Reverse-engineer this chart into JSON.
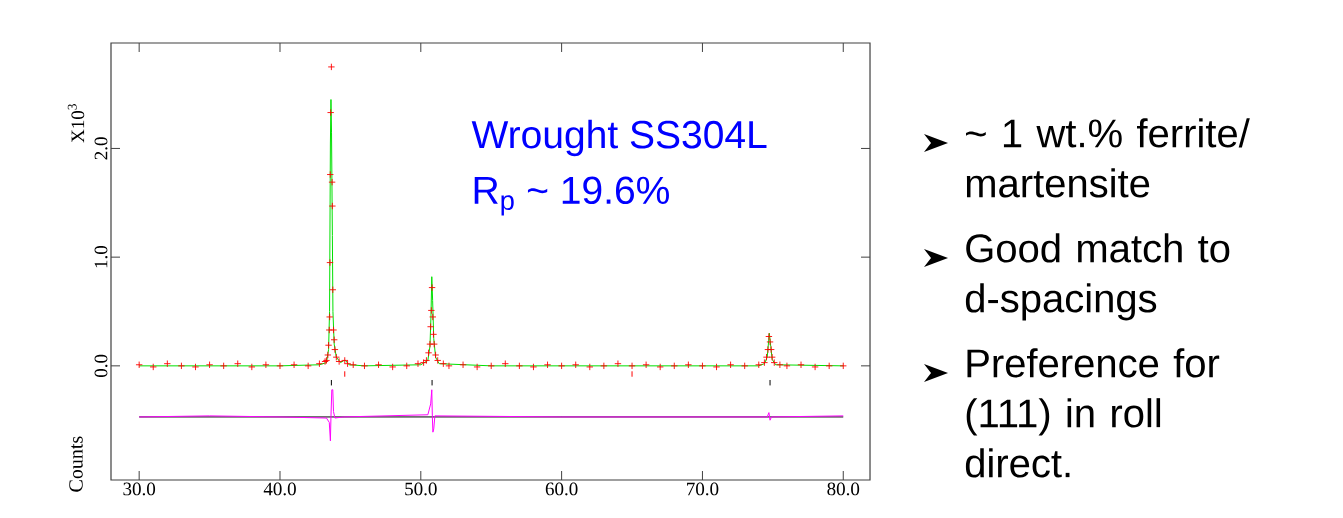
{
  "chart_data": {
    "type": "line",
    "ylabel": "Counts",
    "xlim": [
      28.0,
      81.9
    ],
    "ylim": [
      -1.05,
      2.97
    ],
    "xticks": [
      {
        "value": 30,
        "label": "30.0"
      },
      {
        "value": 40,
        "label": "40.0"
      },
      {
        "value": 50,
        "label": "50.0"
      },
      {
        "value": 60,
        "label": "60.0"
      },
      {
        "value": 70,
        "label": "70.0"
      },
      {
        "value": 80,
        "label": "80.0"
      }
    ],
    "yticks": [
      {
        "value": 0,
        "label": "0.0"
      },
      {
        "value": 1,
        "label": "1.0"
      },
      {
        "value": 2,
        "label": "2.0"
      }
    ],
    "annotations": [
      "X10$^{3}$",
      "Wrought SS304L",
      "R$_{p}$ ~  19.6%",
      "~ 1 wt.% ferrite/ martensite",
      "Good match to d-spacings",
      "Preference for (111) in roll direct."
    ],
    "series": [
      {
        "type": "scatter",
        "marker": "cross",
        "color": "#ff0000",
        "x": [
          30,
          31,
          32,
          33,
          34,
          35,
          36,
          37,
          38,
          39,
          40,
          41,
          42,
          42.8,
          43.2,
          43.3,
          43.4,
          43.45,
          43.5,
          43.53,
          43.55,
          43.57,
          43.6,
          43.65,
          43.7,
          43.72,
          43.75,
          43.8,
          43.85,
          43.9,
          44.0,
          44.2,
          44.6,
          44.8,
          45.2,
          46,
          47,
          48,
          49,
          49.8,
          50.2,
          50.4,
          50.55,
          50.65,
          50.7,
          50.75,
          50.8,
          50.85,
          50.9,
          50.95,
          51.05,
          51.2,
          51.6,
          52,
          53,
          54,
          55,
          56,
          57,
          58,
          59,
          60,
          61,
          62,
          63,
          64,
          65,
          66,
          67,
          68,
          69,
          70,
          71,
          72,
          73,
          74,
          74.4,
          74.55,
          74.65,
          74.72,
          74.8,
          74.88,
          74.95,
          75.1,
          75.5,
          76,
          77,
          78,
          79,
          80
        ],
        "values": [
          0.01,
          -0.01,
          0.02,
          0.0,
          -0.01,
          0.01,
          0.0,
          0.02,
          -0.01,
          0.01,
          0.0,
          0.01,
          0.0,
          0.02,
          0.04,
          0.05,
          0.1,
          0.19,
          0.33,
          0.45,
          0.95,
          1.76,
          2.33,
          2.75,
          1.69,
          1.47,
          0.7,
          0.33,
          0.24,
          0.15,
          0.08,
          0.04,
          0.05,
          0.02,
          0.01,
          0.0,
          0.01,
          -0.01,
          0.0,
          0.02,
          0.03,
          0.05,
          0.12,
          0.2,
          0.36,
          0.51,
          0.72,
          0.45,
          0.29,
          0.2,
          0.1,
          0.05,
          0.02,
          0.0,
          0.01,
          -0.01,
          0.0,
          0.02,
          0.0,
          -0.01,
          0.01,
          0.0,
          0.01,
          -0.01,
          0.0,
          0.02,
          0.0,
          0.01,
          -0.01,
          0.0,
          0.01,
          0.0,
          -0.01,
          0.01,
          0.0,
          0.01,
          0.03,
          0.08,
          0.15,
          0.27,
          0.22,
          0.15,
          0.08,
          0.03,
          0.01,
          0.0,
          0.01,
          -0.01,
          0.0,
          0.0
        ]
      },
      {
        "type": "line",
        "color": "#00e000",
        "x": [
          30,
          40,
          42.8,
          43.3,
          43.45,
          43.52,
          43.58,
          43.62,
          43.66,
          43.72,
          43.76,
          43.85,
          44.0,
          44.3,
          44.55,
          44.65,
          44.9,
          46,
          50,
          50.5,
          50.65,
          50.72,
          50.78,
          50.84,
          50.92,
          51.05,
          51.3,
          55,
          74,
          74.4,
          74.6,
          74.75,
          74.85,
          74.95,
          75.2,
          80
        ],
        "values": [
          0.0,
          0.0,
          0.01,
          0.03,
          0.15,
          0.5,
          2.05,
          2.45,
          2.15,
          1.2,
          0.5,
          0.2,
          0.08,
          0.03,
          0.05,
          0.05,
          0.01,
          0.0,
          0.01,
          0.05,
          0.18,
          0.45,
          0.82,
          0.6,
          0.25,
          0.08,
          0.02,
          0.0,
          0.0,
          0.02,
          0.08,
          0.3,
          0.18,
          0.06,
          0.01,
          0.0
        ]
      },
      {
        "color": "#000000",
        "x": [
          30,
          80
        ],
        "values": [
          -0.47,
          -0.47
        ]
      },
      {
        "color": "#ff00ff",
        "x": [
          30,
          35,
          40,
          43.3,
          43.5,
          43.58,
          43.62,
          43.68,
          43.75,
          43.8,
          43.9,
          44.5,
          50.5,
          50.7,
          50.78,
          50.82,
          50.86,
          50.92,
          51.0,
          60,
          74.6,
          74.72,
          74.8,
          74.9,
          80
        ],
        "values": [
          -0.47,
          -0.46,
          -0.47,
          -0.48,
          -0.52,
          -0.69,
          -0.47,
          -0.22,
          -0.22,
          -0.42,
          -0.48,
          -0.47,
          -0.45,
          -0.35,
          -0.22,
          -0.47,
          -0.61,
          -0.58,
          -0.46,
          -0.47,
          -0.47,
          -0.43,
          -0.5,
          -0.47,
          -0.46
        ]
      },
      {
        "color": "#000000",
        "x": [
          43.65,
          43.65
        ],
        "values": [
          -0.13,
          -0.18
        ]
      },
      {
        "color": "#000000",
        "x": [
          50.8,
          50.8
        ],
        "values": [
          -0.13,
          -0.18
        ]
      },
      {
        "color": "#000000",
        "x": [
          74.8,
          74.8
        ],
        "values": [
          -0.13,
          -0.18
        ]
      },
      {
        "color": "#ff0000",
        "x": [
          44.6,
          44.6
        ],
        "values": [
          -0.05,
          -0.1
        ]
      },
      {
        "color": "#ff0000",
        "x": [
          65.0,
          65.0
        ],
        "values": [
          -0.05,
          -0.1
        ]
      }
    ]
  }
}
